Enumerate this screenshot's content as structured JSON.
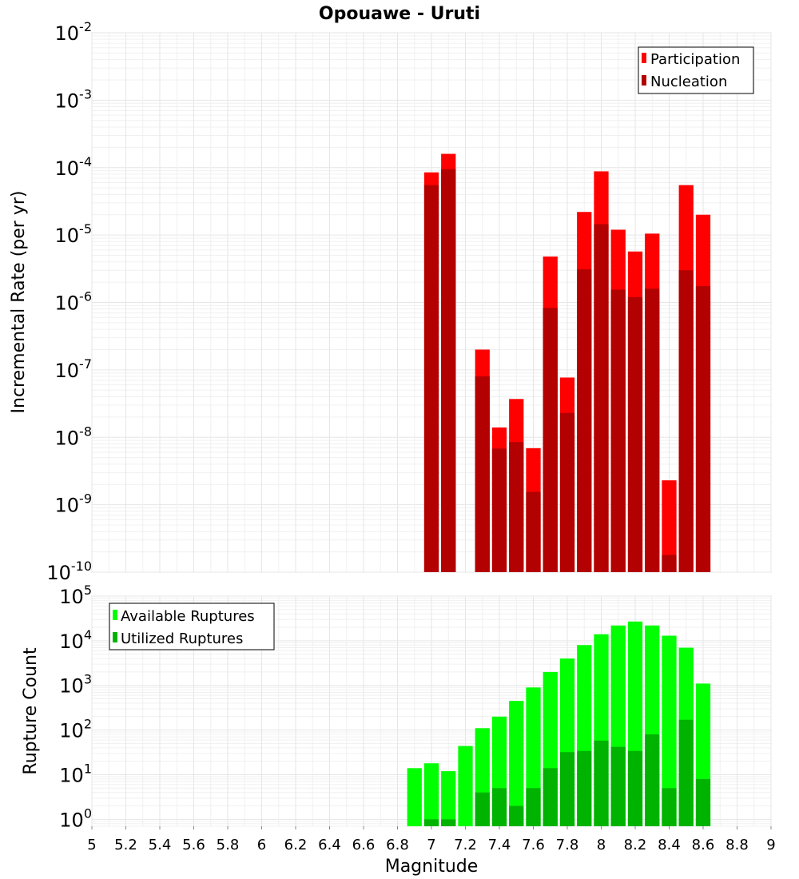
{
  "chart_data": [
    {
      "type": "bar",
      "title": "Opouawe - Uruti",
      "xlabel": "",
      "ylabel": "Incremental Rate (per yr)",
      "yscale": "log",
      "ylim": [
        1e-10,
        0.01
      ],
      "xlim": [
        5,
        9
      ],
      "bin_width": 0.1,
      "legend_position": "top-right",
      "grid": true,
      "x": [
        7.0,
        7.1,
        7.3,
        7.4,
        7.5,
        7.6,
        7.7,
        7.8,
        7.9,
        8.0,
        8.1,
        8.2,
        8.3,
        8.4,
        8.5,
        8.6
      ],
      "series": [
        {
          "name": "Participation",
          "color": "#ff0000",
          "values": [
            8.5e-05,
            0.00016,
            2e-07,
            1.4e-08,
            3.7e-08,
            6.9e-09,
            4.8e-06,
            7.7e-08,
            2.2e-05,
            8.8e-05,
            1.2e-05,
            5.7e-06,
            1.05e-05,
            2.3e-09,
            5.5e-05,
            2e-05
          ]
        },
        {
          "name": "Nucleation",
          "color": "#b30000",
          "values": [
            5.5e-05,
            9.5e-05,
            8e-08,
            6.8e-09,
            8.5e-09,
            1.55e-09,
            8.3e-07,
            2.3e-08,
            3.1e-06,
            1.45e-05,
            1.55e-06,
            1.2e-06,
            1.6e-06,
            1.8e-10,
            3e-06,
            1.75e-06
          ]
        }
      ]
    },
    {
      "type": "bar",
      "title": "",
      "xlabel": "Magnitude",
      "ylabel": "Rupture Count",
      "yscale": "log",
      "ylim": [
        0.7,
        100000.0
      ],
      "xlim": [
        5,
        9
      ],
      "bin_width": 0.1,
      "legend_position": "top-left",
      "grid": true,
      "x_ticks": [
        "5",
        "5.2",
        "5.4",
        "5.6",
        "5.8",
        "6",
        "6.2",
        "6.4",
        "6.6",
        "6.8",
        "7",
        "7.2",
        "7.4",
        "7.6",
        "7.8",
        "8",
        "8.2",
        "8.4",
        "8.6",
        "8.8",
        "9"
      ],
      "x": [
        6.9,
        7.0,
        7.1,
        7.2,
        7.3,
        7.4,
        7.5,
        7.6,
        7.7,
        7.8,
        7.9,
        8.0,
        8.1,
        8.2,
        8.3,
        8.4,
        8.5,
        8.6
      ],
      "series": [
        {
          "name": "Available Ruptures",
          "color": "#00ff00",
          "values": [
            14,
            18,
            12,
            44,
            110,
            200,
            450,
            900,
            2000,
            4000,
            8000,
            14000,
            22000,
            27000,
            22000,
            13000,
            7000,
            1100
          ]
        },
        {
          "name": "Utilized Ruptures",
          "color": "#00b300",
          "values": [
            null,
            1,
            1,
            null,
            4,
            5,
            2,
            5,
            14,
            32,
            34,
            58,
            42,
            34,
            80,
            5,
            170,
            8
          ]
        }
      ]
    }
  ]
}
